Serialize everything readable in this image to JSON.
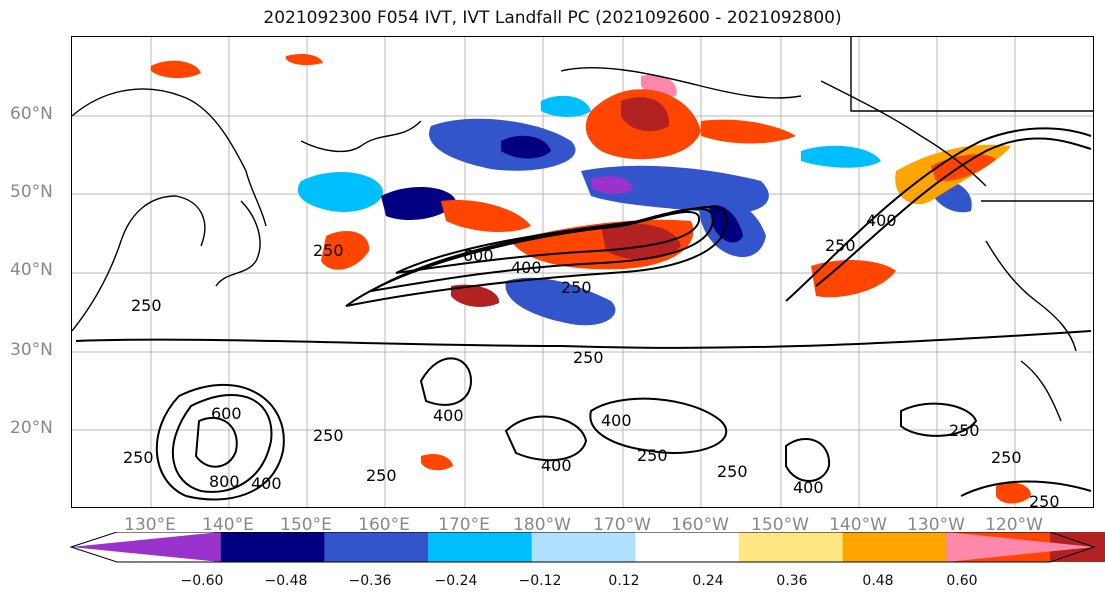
{
  "title": "2021092300 F054 IVT, IVT Landfall PC (2021092600 - 2021092800)",
  "map": {
    "lat_labels": [
      "60°N",
      "50°N",
      "40°N",
      "30°N",
      "20°N"
    ],
    "lon_labels": [
      "130°E",
      "140°E",
      "150°E",
      "160°E",
      "170°E",
      "180°W",
      "170°W",
      "160°W",
      "150°W",
      "140°W",
      "130°W",
      "120°W"
    ],
    "contour_levels_shown": [
      "600",
      "400",
      "250",
      "250",
      "600",
      "400",
      "250",
      "250",
      "400",
      "400",
      "250",
      "250",
      "400",
      "800",
      "250",
      "400",
      "400",
      "250",
      "250",
      "250",
      "250",
      "250",
      "250"
    ]
  },
  "colorbar": {
    "tick_labels": [
      "−0.60",
      "−0.48",
      "−0.36",
      "−0.24",
      "−0.12",
      "0.12",
      "0.24",
      "0.36",
      "0.48",
      "0.60"
    ],
    "colors": [
      "#9933cc",
      "#000080",
      "#3355cc",
      "#00bfff",
      "#b0e0ff",
      "#ffffff",
      "#ffe680",
      "#ffa500",
      "#ff4500",
      "#b22222",
      "#ff88aa"
    ]
  }
}
